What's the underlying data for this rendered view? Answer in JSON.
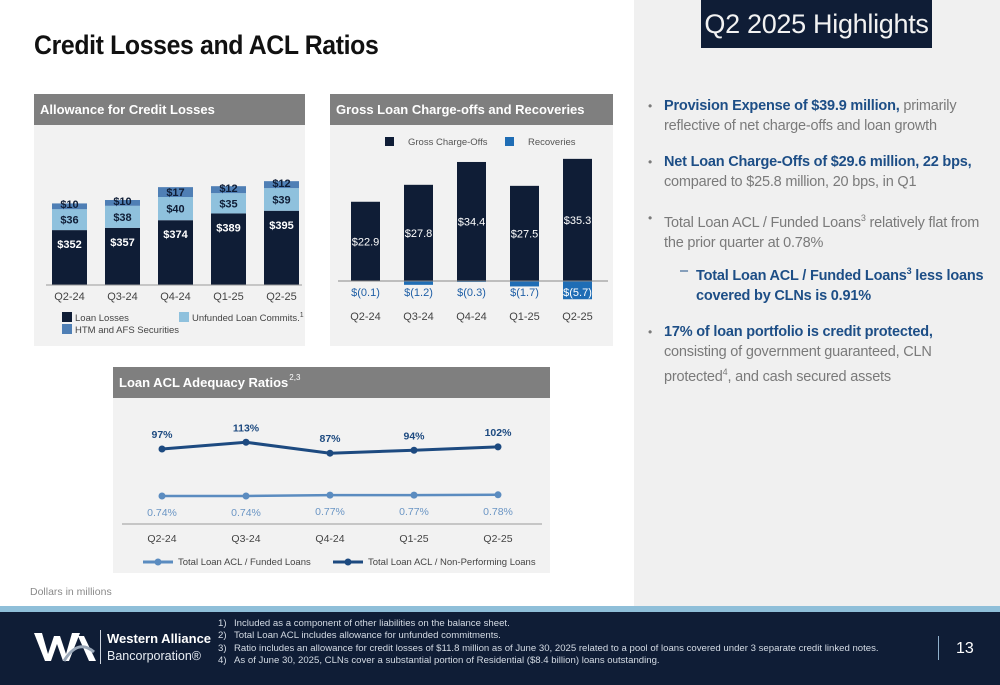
{
  "page": {
    "title": "Credit Losses and ACL Ratios",
    "badge": "Q2 2025 Highlights",
    "units_note": "Dollars in millions",
    "page_number": "13"
  },
  "colors": {
    "navy": "#0f1d36",
    "light_blue": "#8fc1dd",
    "mid_blue": "#4f7fb5",
    "recovery_blue": "#1f6db5",
    "accent_text": "#1d4e86",
    "panel_header": "#7f7f7f"
  },
  "panels": {
    "acl": {
      "title": "Allowance for Credit Losses"
    },
    "gco": {
      "title": "Gross Loan Charge-offs and Recoveries"
    },
    "ratios": {
      "title": "Loan ACL Adequacy Ratios",
      "title_sup": "2,3"
    }
  },
  "chart_data": [
    {
      "type": "bar",
      "stacked": true,
      "title": "Allowance for Credit Losses",
      "categories": [
        "Q2-24",
        "Q3-24",
        "Q4-24",
        "Q1-25",
        "Q2-25"
      ],
      "series": [
        {
          "name": "Loan Losses",
          "values": [
            352,
            357,
            374,
            389,
            395
          ],
          "labels": [
            "$352",
            "$357",
            "$374",
            "$389",
            "$395"
          ],
          "color": "#0f1d36"
        },
        {
          "name": "Unfunded Loan Commits.",
          "name_sup": "1",
          "values": [
            36,
            38,
            40,
            35,
            39
          ],
          "labels": [
            "$36",
            "$38",
            "$40",
            "$35",
            "$39"
          ],
          "color": "#8fc1dd"
        },
        {
          "name": "HTM and AFS Securities",
          "values": [
            10,
            10,
            17,
            12,
            12
          ],
          "labels": [
            "$10",
            "$10",
            "$17",
            "$12",
            "$12"
          ],
          "color": "#4f7fb5"
        }
      ],
      "legend": "bottom",
      "grid": false
    },
    {
      "type": "bar",
      "title": "Gross Loan Charge-offs and Recoveries",
      "categories": [
        "Q2-24",
        "Q3-24",
        "Q4-24",
        "Q1-25",
        "Q2-25"
      ],
      "series": [
        {
          "name": "Gross Charge-Offs",
          "values": [
            22.9,
            27.8,
            34.4,
            27.5,
            35.3
          ],
          "labels": [
            "$22.9",
            "$27.8",
            "$34.4",
            "$27.5",
            "$35.3"
          ],
          "color": "#0f1d36"
        },
        {
          "name": "Recoveries",
          "values": [
            -0.1,
            -1.2,
            -0.3,
            -1.7,
            -5.7
          ],
          "labels": [
            "$(0.1)",
            "$(1.2)",
            "$(0.3)",
            "$(1.7)",
            "$(5.7)"
          ],
          "color": "#1f6db5"
        }
      ],
      "legend": "top",
      "grid": false
    },
    {
      "type": "line",
      "title": "Loan ACL Adequacy Ratios",
      "categories": [
        "Q2-24",
        "Q3-24",
        "Q4-24",
        "Q1-25",
        "Q2-25"
      ],
      "series": [
        {
          "name": "Total Loan ACL  / Funded Loans",
          "values": [
            0.74,
            0.74,
            0.77,
            0.77,
            0.78
          ],
          "labels": [
            "0.74%",
            "0.74%",
            "0.77%",
            "0.77%",
            "0.78%"
          ],
          "color": "#5b8cc0",
          "unit": "%"
        },
        {
          "name": "Total Loan ACL  / Non-Performing Loans",
          "values": [
            97,
            113,
            87,
            94,
            102
          ],
          "labels": [
            "97%",
            "113%",
            "87%",
            "94%",
            "102%"
          ],
          "color": "#1d4a80",
          "unit": "%"
        }
      ],
      "legend": "bottom",
      "grid": false
    }
  ],
  "bullets": [
    {
      "highlight": "Provision Expense of $39.9 million,",
      "text": " primarily reflective of net charge-offs and loan growth"
    },
    {
      "highlight": "Net Loan Charge-Offs of $29.6 million, 22 bps,",
      "text": " compared to $25.8 million, 20 bps, in Q1"
    },
    {
      "text_a": "Total Loan ACL / Funded Loans",
      "sup": "3",
      "text_b": " relatively flat from the prior quarter at 0.78%",
      "sub": {
        "dash": "–",
        "text_a": "Total Loan ACL / Funded Loans",
        "sup": "3",
        "text_b": " less loans covered by CLNs is 0.91%"
      }
    },
    {
      "highlight": "17% of loan portfolio is credit protected,",
      "text_a": " consisting of government guaranteed, CLN protected",
      "sup": "4",
      "text_b": ", and cash secured assets"
    }
  ],
  "footer": {
    "logo_line1": "Western Alliance",
    "logo_line2": "Bancorporation®",
    "footnotes": [
      {
        "num": "1)",
        "text": "Included as a component of other liabilities on the balance sheet."
      },
      {
        "num": "2)",
        "text": "Total Loan ACL includes allowance for unfunded commitments."
      },
      {
        "num": "3)",
        "text": "Ratio includes an allowance for credit losses of $11.8 million as of June 30, 2025 related to a pool of loans covered under 3 separate credit linked notes."
      },
      {
        "num": "4)",
        "text": "As of June 30, 2025, CLNs cover a substantial portion of Residential ($8.4 billion) loans outstanding."
      }
    ]
  }
}
